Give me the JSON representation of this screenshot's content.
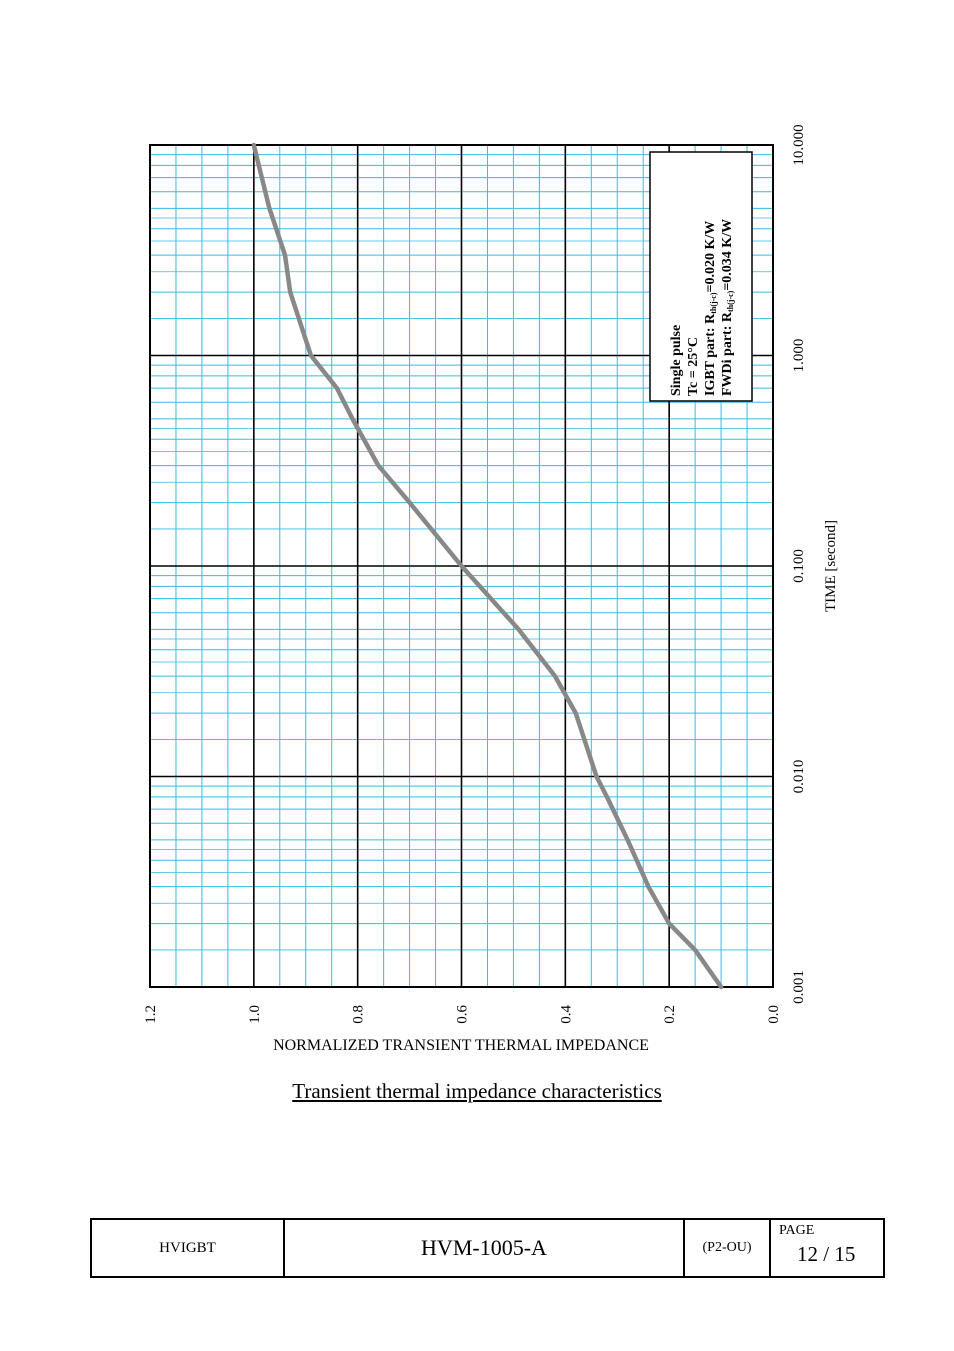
{
  "chart_data": {
    "type": "line",
    "caption": "Transient thermal impedance characteristics",
    "xlabel": "TIME [second]",
    "ylabel": "NORMALIZED TRANSIENT THERMAL IMPEDANCE",
    "x_scale": "log",
    "xlim": [
      0.001,
      10
    ],
    "ylim": [
      0.0,
      1.2
    ],
    "x_ticks": [
      "0.001",
      "0.010",
      "0.100",
      "1.000",
      "10.000"
    ],
    "y_ticks": [
      "0.0",
      "0.2",
      "0.4",
      "0.6",
      "0.8",
      "1.0",
      "1.2"
    ],
    "grid": true,
    "legend_placement": "top-right",
    "legend_lines": [
      "Single pulse",
      "Tc = 25°C",
      "IGBT part: R",
      "FWDi part: R"
    ],
    "legend_subscript": "th(j-c)",
    "legend_values": [
      "=0.020 K/W",
      "=0.034 K/W"
    ],
    "series": [
      {
        "color": "#888888",
        "x": [
          0.001,
          0.0015,
          0.002,
          0.003,
          0.005,
          0.008,
          0.01,
          0.02,
          0.03,
          0.05,
          0.1,
          0.2,
          0.3,
          0.5,
          0.7,
          1,
          2,
          3,
          5,
          10
        ],
        "y": [
          0.1,
          0.15,
          0.2,
          0.24,
          0.28,
          0.32,
          0.34,
          0.38,
          0.42,
          0.49,
          0.6,
          0.7,
          0.76,
          0.81,
          0.84,
          0.89,
          0.93,
          0.94,
          0.97,
          1.0
        ]
      }
    ]
  },
  "footer": {
    "product": "HVIGBT",
    "doc_id": "HVM-1005-A",
    "revision": "(P2-OU)",
    "page_label": "PAGE",
    "page_number": "12 / 15"
  }
}
